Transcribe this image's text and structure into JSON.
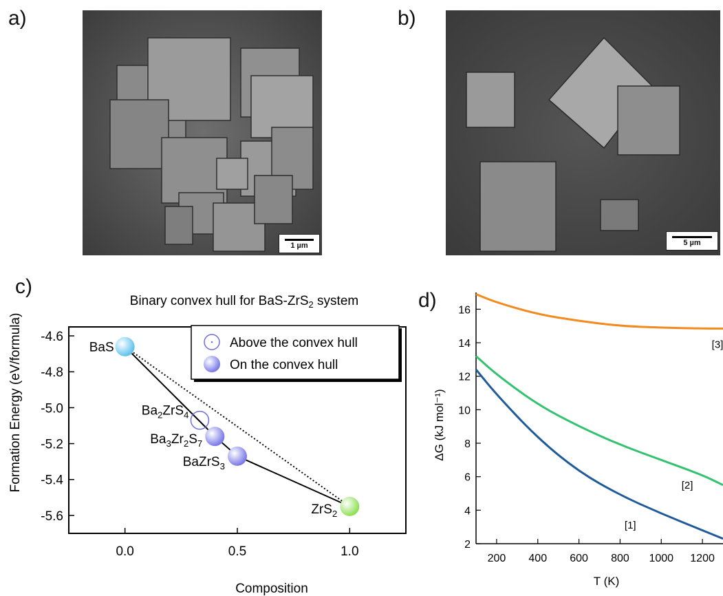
{
  "panels": {
    "a": {
      "label": "a)",
      "scale_bar": "1 µm"
    },
    "b": {
      "label": "b)",
      "scale_bar": "5 µm"
    },
    "c": {
      "label": "c)"
    },
    "d": {
      "label": "d)"
    }
  },
  "chart_data": [
    {
      "type": "scatter",
      "title": "Binary convex hull for BaS-ZrS2 system",
      "xlabel": "Composition",
      "ylabel": "Formation Energy (eV/formula)",
      "xlim": [
        -0.25,
        1.25
      ],
      "ylim": [
        -5.7,
        -4.55
      ],
      "xticks": [
        "0.0",
        "0.5",
        "1.0"
      ],
      "yticks": [
        "-4.6",
        "-4.8",
        "-5.0",
        "-5.2",
        "-5.4",
        "-5.6"
      ],
      "legend": {
        "position": "top-right",
        "entries": [
          "Above the convex hull",
          "On the convex hull"
        ]
      },
      "points": [
        {
          "name": "BaS",
          "x": 0.0,
          "y": -4.66,
          "status": "endpoint",
          "color": "#5fc3ee"
        },
        {
          "name": "Ba2ZrS4",
          "x": 0.333,
          "y": -5.07,
          "status": "above",
          "color": "#6c6ce0"
        },
        {
          "name": "Ba3Zr2S7",
          "x": 0.4,
          "y": -5.16,
          "status": "on",
          "color": "#7a7ae8"
        },
        {
          "name": "BaZrS3",
          "x": 0.5,
          "y": -5.27,
          "status": "on",
          "color": "#7a7ae8"
        },
        {
          "name": "ZrS2",
          "x": 1.0,
          "y": -5.55,
          "status": "endpoint",
          "color": "#8fe055"
        }
      ],
      "hull_line": [
        [
          0.0,
          -4.66
        ],
        [
          0.4,
          -5.16
        ],
        [
          0.5,
          -5.27
        ],
        [
          1.0,
          -5.55
        ]
      ],
      "reference_line": [
        [
          0.0,
          -4.66
        ],
        [
          1.0,
          -5.55
        ]
      ]
    },
    {
      "type": "line",
      "title": "",
      "xlabel": "T (K)",
      "ylabel": "ΔG (kJ mol⁻¹)",
      "xlim": [
        100,
        1300
      ],
      "ylim": [
        2,
        17
      ],
      "xticks": [
        200,
        400,
        600,
        800,
        1000,
        1200
      ],
      "yticks": [
        2,
        4,
        6,
        8,
        10,
        12,
        14,
        16
      ],
      "series": [
        {
          "name": "[1]",
          "color": "#1f5b99",
          "x": [
            100,
            200,
            400,
            600,
            800,
            1000,
            1200,
            1300
          ],
          "y": [
            12.4,
            10.9,
            8.3,
            6.3,
            4.9,
            3.8,
            2.8,
            2.3
          ]
        },
        {
          "name": "[2]",
          "color": "#33c270",
          "x": [
            100,
            200,
            400,
            600,
            800,
            1000,
            1200,
            1300
          ],
          "y": [
            13.2,
            12.1,
            10.3,
            9.0,
            7.9,
            7.0,
            6.1,
            5.5
          ]
        },
        {
          "name": "[3]",
          "color": "#f28a1e",
          "x": [
            100,
            200,
            400,
            600,
            800,
            1000,
            1200,
            1300
          ],
          "y": [
            16.9,
            16.4,
            15.7,
            15.3,
            15.0,
            14.9,
            14.85,
            14.85
          ]
        }
      ]
    }
  ]
}
